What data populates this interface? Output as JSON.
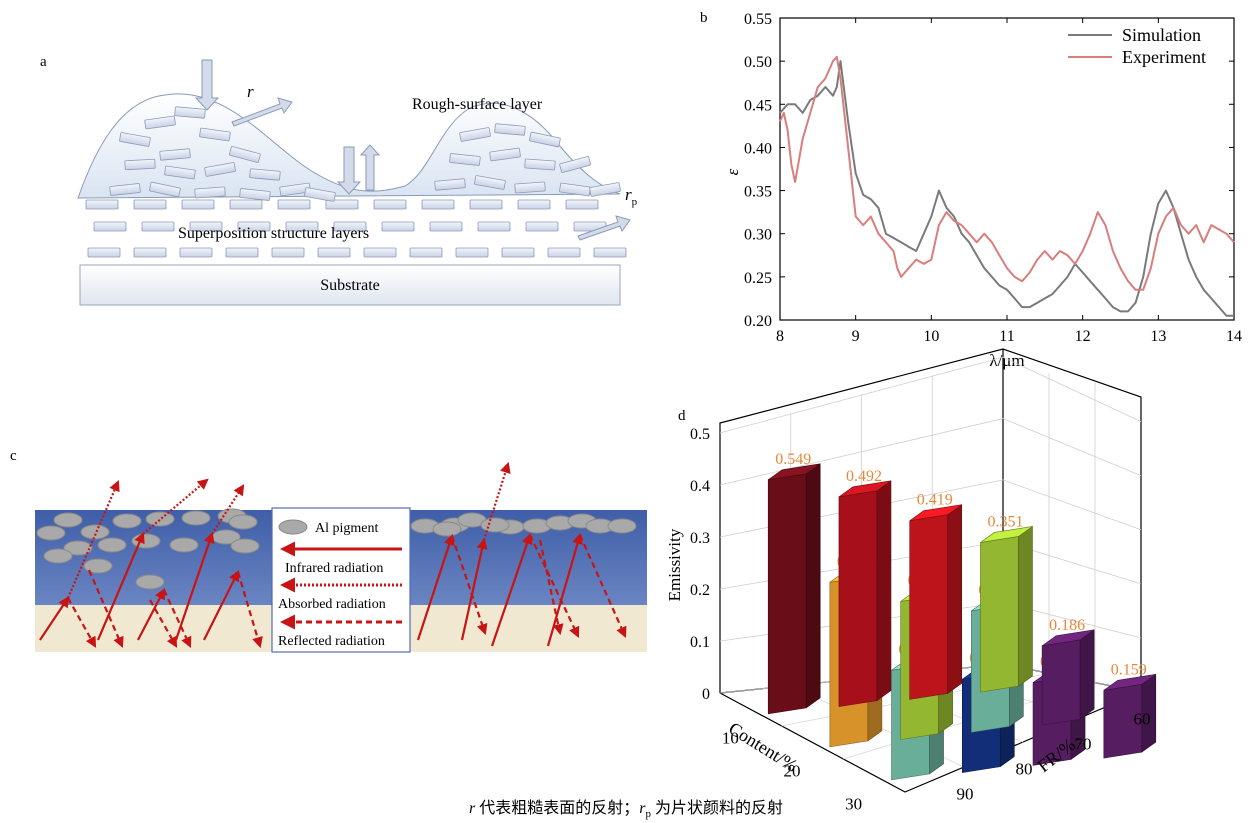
{
  "panel_a": {
    "letter": "a",
    "r_label": "r",
    "rp_main": "r",
    "rp_sub": "p",
    "rough_label": "Rough-surface layer",
    "superposition_label": "Superposition structure layers",
    "substrate_label": "Substrate"
  },
  "panel_b": {
    "letter": "b",
    "ylabel": "ε",
    "xlabel": "λ/μm"
  },
  "panel_c": {
    "letter": "c",
    "legend": {
      "pigment": "Al pigment",
      "infrared": "Infrared radiation",
      "absorbed": "Absorbed radiation",
      "reflected": "Reflected radiation"
    }
  },
  "panel_d": {
    "letter": "d"
  },
  "caption": {
    "r": "r",
    "part1": " 代表粗糙表面的反射；",
    "rp": "r",
    "rp_sub": "p",
    "part2": " 为片状颜料的反射"
  },
  "colors": {
    "simulation": "#7a7a7a",
    "experiment": "#d97d7d",
    "coating": "#4f6db3",
    "substrate_c": "#f1e8d2",
    "arrow_red": "#c81414",
    "value_label": "#e8873a"
  },
  "chart_data": [
    {
      "type": "line",
      "panel": "b",
      "title": "",
      "xlabel": "λ/μm",
      "ylabel": "ε",
      "xlim": [
        8,
        14
      ],
      "ylim": [
        0.2,
        0.55
      ],
      "xticks": [
        8,
        9,
        10,
        11,
        12,
        13,
        14
      ],
      "yticks": [
        0.2,
        0.25,
        0.3,
        0.35,
        0.4,
        0.45,
        0.5,
        0.55
      ],
      "legend_position": "top-right",
      "series": [
        {
          "name": "Simulation",
          "x": [
            8.0,
            8.1,
            8.2,
            8.3,
            8.4,
            8.5,
            8.6,
            8.7,
            8.75,
            8.8,
            8.9,
            9.0,
            9.1,
            9.2,
            9.3,
            9.4,
            9.5,
            9.6,
            9.7,
            9.8,
            9.9,
            10.0,
            10.1,
            10.2,
            10.3,
            10.4,
            10.5,
            10.6,
            10.7,
            10.8,
            10.9,
            11.0,
            11.1,
            11.2,
            11.3,
            11.4,
            11.5,
            11.6,
            11.7,
            11.8,
            11.9,
            12.0,
            12.1,
            12.2,
            12.3,
            12.4,
            12.5,
            12.6,
            12.7,
            12.8,
            12.9,
            13.0,
            13.1,
            13.2,
            13.3,
            13.4,
            13.5,
            13.6,
            13.7,
            13.8,
            13.9,
            14.0
          ],
          "y": [
            0.44,
            0.45,
            0.45,
            0.44,
            0.455,
            0.46,
            0.47,
            0.46,
            0.47,
            0.5,
            0.43,
            0.37,
            0.345,
            0.34,
            0.33,
            0.3,
            0.295,
            0.29,
            0.285,
            0.28,
            0.3,
            0.32,
            0.35,
            0.33,
            0.32,
            0.3,
            0.29,
            0.275,
            0.26,
            0.25,
            0.24,
            0.235,
            0.225,
            0.215,
            0.215,
            0.22,
            0.225,
            0.23,
            0.24,
            0.25,
            0.265,
            0.255,
            0.245,
            0.235,
            0.225,
            0.215,
            0.21,
            0.21,
            0.22,
            0.25,
            0.3,
            0.335,
            0.35,
            0.33,
            0.3,
            0.27,
            0.25,
            0.235,
            0.225,
            0.215,
            0.205,
            0.205
          ]
        },
        {
          "name": "Experiment",
          "x": [
            8.0,
            8.05,
            8.1,
            8.15,
            8.2,
            8.3,
            8.4,
            8.5,
            8.6,
            8.7,
            8.75,
            8.8,
            8.9,
            9.0,
            9.1,
            9.2,
            9.3,
            9.4,
            9.5,
            9.55,
            9.6,
            9.7,
            9.8,
            9.9,
            10.0,
            10.1,
            10.2,
            10.3,
            10.4,
            10.5,
            10.6,
            10.7,
            10.8,
            10.9,
            11.0,
            11.1,
            11.2,
            11.3,
            11.4,
            11.5,
            11.6,
            11.7,
            11.8,
            11.9,
            12.0,
            12.1,
            12.2,
            12.3,
            12.4,
            12.5,
            12.6,
            12.7,
            12.8,
            12.9,
            13.0,
            13.1,
            13.2,
            13.3,
            13.4,
            13.5,
            13.6,
            13.7,
            13.8,
            13.9,
            14.0
          ],
          "y": [
            0.43,
            0.44,
            0.42,
            0.38,
            0.36,
            0.41,
            0.44,
            0.47,
            0.48,
            0.5,
            0.505,
            0.48,
            0.4,
            0.32,
            0.31,
            0.32,
            0.3,
            0.29,
            0.28,
            0.26,
            0.25,
            0.26,
            0.27,
            0.265,
            0.27,
            0.31,
            0.325,
            0.315,
            0.31,
            0.3,
            0.29,
            0.3,
            0.29,
            0.275,
            0.26,
            0.25,
            0.245,
            0.255,
            0.27,
            0.28,
            0.27,
            0.28,
            0.275,
            0.265,
            0.28,
            0.3,
            0.325,
            0.31,
            0.28,
            0.26,
            0.245,
            0.235,
            0.235,
            0.26,
            0.3,
            0.32,
            0.33,
            0.31,
            0.3,
            0.31,
            0.29,
            0.31,
            0.305,
            0.3,
            0.29
          ]
        }
      ]
    },
    {
      "type": "bar",
      "panel": "d",
      "title": "",
      "zlabel": "Emissivity",
      "xlabel": "Content/%",
      "ylabel": "FR/%",
      "x_ticks": [
        10,
        20,
        30
      ],
      "y_ticks": [
        60,
        70,
        80,
        90
      ],
      "zlim": [
        0,
        0.5
      ],
      "zticks": [
        0,
        0.1,
        0.2,
        0.3,
        0.4,
        0.5
      ],
      "bars": [
        {
          "content": 10,
          "fr": 90,
          "value": 0.351,
          "color": "#9bc132"
        },
        {
          "content": 10,
          "fr": 80,
          "value": 0.419,
          "color": "#c7151d"
        },
        {
          "content": 10,
          "fr": 70,
          "value": 0.492,
          "color": "#b0111b"
        },
        {
          "content": 10,
          "fr": 60,
          "value": 0.549,
          "color": "#6e0e1a"
        },
        {
          "content": 20,
          "fr": 90,
          "value": 0.186,
          "color": "#5b1e66"
        },
        {
          "content": 20,
          "fr": 80,
          "value": 0.285,
          "color": "#6fb7a1"
        },
        {
          "content": 20,
          "fr": 70,
          "value": 0.324,
          "color": "#9bc132"
        },
        {
          "content": 20,
          "fr": 60,
          "value": 0.386,
          "color": "#e39a2c"
        },
        {
          "content": 30,
          "fr": 90,
          "value": 0.159,
          "color": "#5b1e66"
        },
        {
          "content": 30,
          "fr": 80,
          "value": 0.194,
          "color": "#5b1e66"
        },
        {
          "content": 30,
          "fr": 70,
          "value": 0.219,
          "color": "#13307f"
        },
        {
          "content": 30,
          "fr": 60,
          "value": 0.257,
          "color": "#6fb7a1"
        }
      ]
    }
  ]
}
